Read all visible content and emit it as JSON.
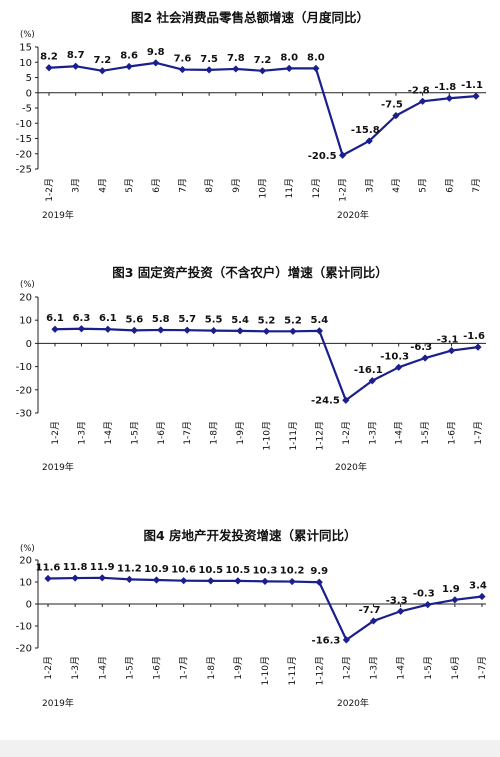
{
  "colors": {
    "line": "#1a1f8c",
    "axis": "#222222",
    "text": "#111111"
  },
  "chart_data": [
    {
      "type": "line",
      "title": "图2  社会消费品零售总额增速（月度同比）",
      "unit_label": "(%)",
      "ylim": [
        -25,
        15
      ],
      "yticks": [
        "15",
        "10",
        "5",
        "0",
        "-5",
        "-10",
        "-15",
        "-20",
        "-25"
      ],
      "categories": [
        "1-2月",
        "3月",
        "4月",
        "5月",
        "6月",
        "7月",
        "8月",
        "9月",
        "10月",
        "11月",
        "12月",
        "1-2月",
        "3月",
        "4月",
        "5月",
        "6月",
        "7月"
      ],
      "year_labels": [
        "2019年",
        "2020年"
      ],
      "values": [
        8.2,
        8.7,
        7.2,
        8.6,
        9.8,
        7.6,
        7.5,
        7.8,
        7.2,
        8.0,
        8.0,
        -20.5,
        -15.8,
        -7.5,
        -2.8,
        -1.8,
        -1.1
      ],
      "value_labels": [
        "8.2",
        "8.7",
        "7.2",
        "8.6",
        "9.8",
        "7.6",
        "7.5",
        "7.8",
        "7.2",
        "8.0",
        "8.0",
        "-20.5",
        "-15.8",
        "-7.5",
        "-2.8",
        "-1.8",
        "-1.1"
      ],
      "grid": false,
      "legend": "none"
    },
    {
      "type": "line",
      "title": "图3   固定资产投资（不含农户）增速（累计同比）",
      "unit_label": "(%)",
      "ylim": [
        -30,
        20
      ],
      "yticks": [
        "20",
        "10",
        "0",
        "-10",
        "-20",
        "-30"
      ],
      "categories": [
        "1-2月",
        "1-3月",
        "1-4月",
        "1-5月",
        "1-6月",
        "1-7月",
        "1-8月",
        "1-9月",
        "1-10月",
        "1-11月",
        "1-12月",
        "1-2月",
        "1-3月",
        "1-4月",
        "1-5月",
        "1-6月",
        "1-7月"
      ],
      "year_labels": [
        "2019年",
        "2020年"
      ],
      "values": [
        6.1,
        6.3,
        6.1,
        5.6,
        5.8,
        5.7,
        5.5,
        5.4,
        5.2,
        5.2,
        5.4,
        -24.5,
        -16.1,
        -10.3,
        -6.3,
        -3.1,
        -1.6
      ],
      "value_labels": [
        "6.1",
        "6.3",
        "6.1",
        "5.6",
        "5.8",
        "5.7",
        "5.5",
        "5.4",
        "5.2",
        "5.2",
        "5.4",
        "-24.5",
        "-16.1",
        "-10.3",
        "-6.3",
        "-3.1",
        "-1.6"
      ],
      "grid": false,
      "legend": "none"
    },
    {
      "type": "line",
      "title": "图4  房地产开发投资增速（累计同比）",
      "unit_label": "(%)",
      "ylim": [
        -20,
        20
      ],
      "yticks": [
        "20",
        "10",
        "0",
        "-10",
        "-20"
      ],
      "categories": [
        "1-2月",
        "1-3月",
        "1-4月",
        "1-5月",
        "1-6月",
        "1-7月",
        "1-8月",
        "1-9月",
        "1-10月",
        "1-11月",
        "1-12月",
        "1-2月",
        "1-3月",
        "1-4月",
        "1-5月",
        "1-6月",
        "1-7月"
      ],
      "year_labels": [
        "2019年",
        "2020年"
      ],
      "values": [
        11.6,
        11.8,
        11.9,
        11.2,
        10.9,
        10.6,
        10.5,
        10.5,
        10.3,
        10.2,
        9.9,
        -16.3,
        -7.7,
        -3.3,
        -0.3,
        1.9,
        3.4
      ],
      "value_labels": [
        "11.6",
        "11.8",
        "11.9",
        "11.2",
        "10.9",
        "10.6",
        "10.5",
        "10.5",
        "10.3",
        "10.2",
        "9.9",
        "-16.3",
        "-7.7",
        "-3.3",
        "-0.3",
        "1.9",
        "3.4"
      ],
      "grid": false,
      "legend": "none"
    }
  ]
}
